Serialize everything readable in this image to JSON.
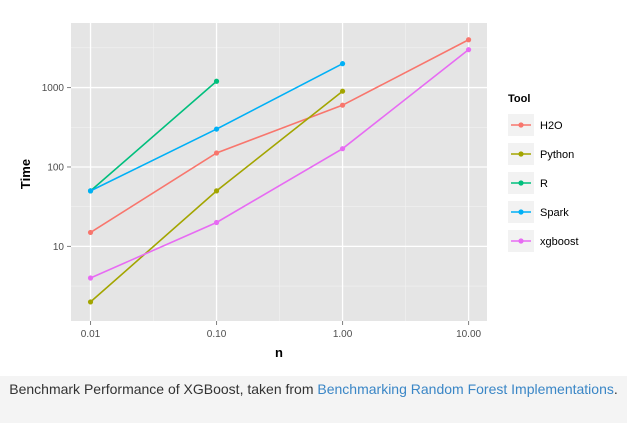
{
  "chart_data": {
    "type": "line",
    "xlabel": "n",
    "ylabel": "Time",
    "x_scale": "log",
    "y_scale": "log",
    "xlim": [
      0.007,
      14
    ],
    "ylim": [
      1.15,
      6500
    ],
    "x_ticks": [
      0.01,
      0.1,
      1,
      10
    ],
    "x_tick_labels": [
      "0.01",
      "0.10",
      "1.00",
      "10.00"
    ],
    "y_ticks": [
      10,
      100,
      1000
    ],
    "y_tick_labels": [
      "10",
      "100",
      "1000"
    ],
    "grid": true,
    "legend_position": "right",
    "legend_title": "Tool",
    "series": [
      {
        "name": "H2O",
        "color": "#f8766d",
        "points": [
          [
            0.01,
            15
          ],
          [
            0.1,
            150
          ],
          [
            1,
            600
          ],
          [
            10,
            4000
          ]
        ]
      },
      {
        "name": "Python",
        "color": "#a3a500",
        "points": [
          [
            0.01,
            2
          ],
          [
            0.1,
            50
          ],
          [
            1,
            900
          ]
        ]
      },
      {
        "name": "R",
        "color": "#00bf7d",
        "points": [
          [
            0.01,
            50
          ],
          [
            0.1,
            1200
          ]
        ]
      },
      {
        "name": "Spark",
        "color": "#00b0f6",
        "points": [
          [
            0.01,
            50
          ],
          [
            0.1,
            300
          ],
          [
            1,
            2000
          ]
        ]
      },
      {
        "name": "xgboost",
        "color": "#e76bf3",
        "points": [
          [
            0.01,
            4
          ],
          [
            0.1,
            20
          ],
          [
            1,
            170
          ],
          [
            10,
            3000
          ]
        ]
      }
    ]
  },
  "caption": {
    "text_before": "Benchmark Performance of XGBoost, taken from ",
    "link_text": "Benchmarking Random Forest Implementations",
    "text_after": "."
  }
}
